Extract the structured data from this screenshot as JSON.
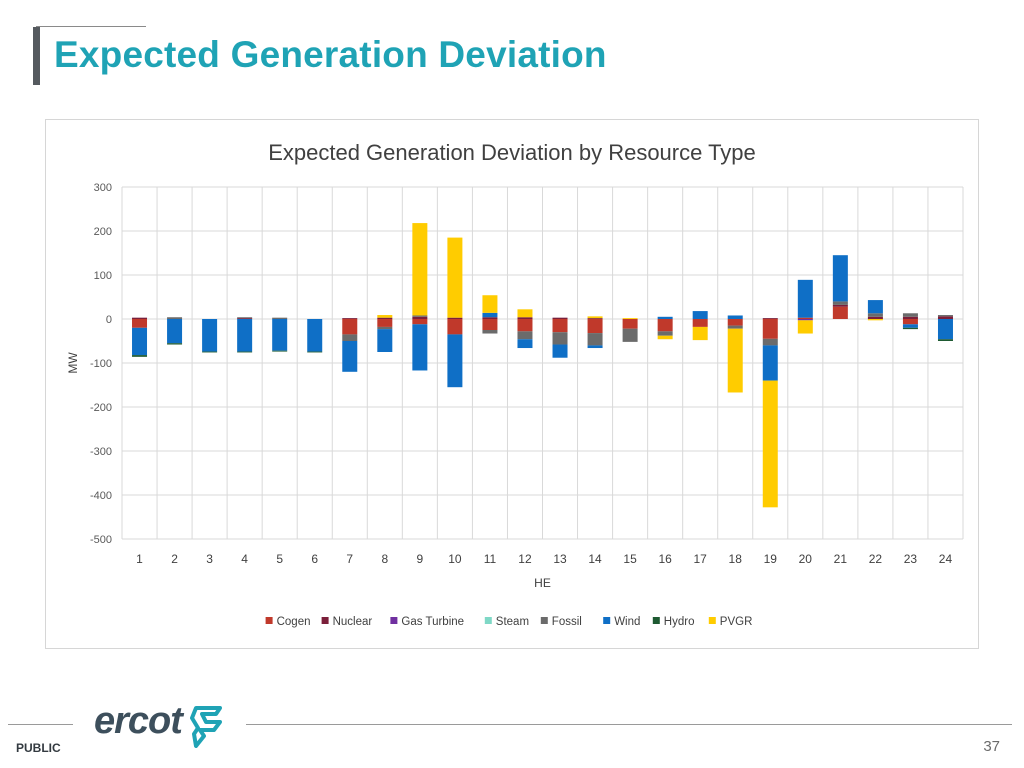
{
  "slide": {
    "title": "Expected Generation Deviation",
    "footer_label": "PUBLIC",
    "page_number": "37",
    "logo_text": "ercot"
  },
  "colors": {
    "title": "#1fa3b5",
    "Cogen": "#c0392b",
    "Nuclear": "#7b1f3a",
    "Gas Turbine": "#7030a0",
    "Steam": "#7fd8c6",
    "Fossil": "#6b6b6b",
    "Wind": "#0f6fc6",
    "Hydro": "#1e5a32",
    "PVGR": "#ffcc00",
    "logo_mark": "#1fa3b5"
  },
  "chart_data": {
    "type": "bar",
    "stacked": true,
    "title": "Expected Generation Deviation by Resource Type",
    "xlabel": "HE",
    "ylabel": "MW",
    "ylim": [
      -500,
      300
    ],
    "yticks": [
      300,
      200,
      100,
      0,
      -100,
      -200,
      -300,
      -400,
      -500
    ],
    "grid": true,
    "legend_position": "bottom",
    "categories": [
      "1",
      "2",
      "3",
      "4",
      "5",
      "6",
      "7",
      "8",
      "9",
      "10",
      "11",
      "12",
      "13",
      "14",
      "15",
      "16",
      "17",
      "18",
      "19",
      "20",
      "21",
      "22",
      "23",
      "24"
    ],
    "series": [
      {
        "name": "Cogen",
        "values": [
          -20,
          0,
          0,
          0,
          0,
          0,
          -35,
          -18,
          -12,
          -35,
          -25,
          -28,
          -30,
          -32,
          -22,
          -28,
          -18,
          -15,
          -45,
          3,
          28,
          0,
          -12,
          0
        ]
      },
      {
        "name": "Nuclear",
        "values": [
          3,
          0,
          0,
          2,
          0,
          0,
          2,
          3,
          5,
          3,
          4,
          4,
          3,
          2,
          0,
          0,
          0,
          0,
          2,
          0,
          4,
          5,
          5,
          6
        ]
      },
      {
        "name": "Gas Turbine",
        "values": [
          0,
          0,
          0,
          0,
          0,
          0,
          0,
          0,
          0,
          0,
          0,
          0,
          0,
          0,
          0,
          0,
          0,
          0,
          0,
          -3,
          0,
          0,
          0,
          0
        ]
      },
      {
        "name": "Steam",
        "values": [
          0,
          0,
          0,
          0,
          0,
          0,
          0,
          0,
          0,
          0,
          0,
          0,
          0,
          0,
          0,
          0,
          0,
          0,
          0,
          0,
          0,
          0,
          0,
          0
        ]
      },
      {
        "name": "Fossil",
        "values": [
          0,
          4,
          0,
          2,
          3,
          0,
          -15,
          -5,
          3,
          0,
          -8,
          -18,
          -28,
          -28,
          -30,
          -10,
          0,
          -7,
          -15,
          0,
          8,
          8,
          8,
          3
        ]
      },
      {
        "name": "Wind",
        "values": [
          -62,
          -55,
          -74,
          -74,
          -72,
          -74,
          -70,
          -52,
          -105,
          -120,
          10,
          -20,
          -30,
          -6,
          0,
          5,
          18,
          8,
          -80,
          86,
          105,
          30,
          -8,
          -46
        ]
      },
      {
        "name": "Hydro",
        "values": [
          -4,
          -3,
          -2,
          -2,
          -2,
          -2,
          0,
          0,
          0,
          0,
          0,
          0,
          0,
          0,
          0,
          0,
          0,
          0,
          0,
          0,
          0,
          0,
          -3,
          -4
        ]
      },
      {
        "name": "PVGR",
        "values": [
          0,
          0,
          0,
          0,
          0,
          0,
          0,
          6,
          210,
          182,
          40,
          18,
          0,
          4,
          2,
          -8,
          -30,
          -145,
          -288,
          -30,
          0,
          -3,
          0,
          0
        ]
      }
    ]
  }
}
